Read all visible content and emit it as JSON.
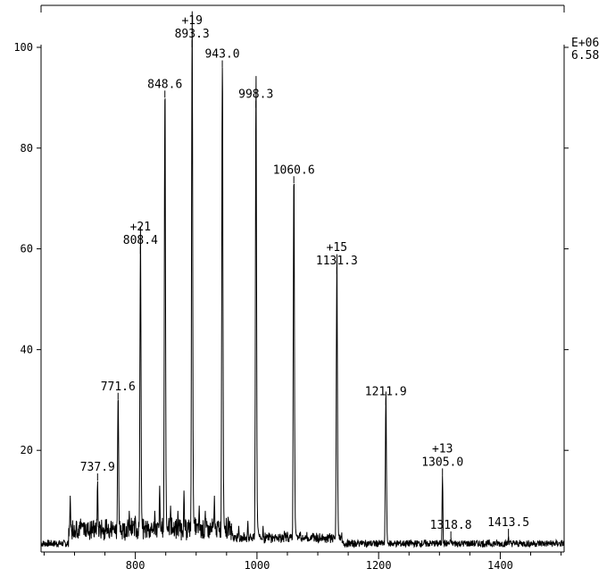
{
  "chart_data": {
    "type": "line",
    "title": "",
    "xlabel": "",
    "ylabel": "",
    "xlim": [
      645,
      1505
    ],
    "ylim": [
      0,
      100
    ],
    "x_ticks": [
      800,
      1000,
      1200,
      1400
    ],
    "y_ticks": [
      20,
      40,
      60,
      80,
      100
    ],
    "scale_label": [
      "E+06",
      "6.58"
    ],
    "grid": false,
    "peaks": [
      {
        "x": 693,
        "y": 11
      },
      {
        "x": 737.9,
        "y": 14,
        "label": "737.9"
      },
      {
        "x": 771.6,
        "y": 30,
        "label": "771.6"
      },
      {
        "x": 808.4,
        "y": 59,
        "label": "808.4",
        "charge": "+21"
      },
      {
        "x": 848.6,
        "y": 90,
        "label": "848.6"
      },
      {
        "x": 893.3,
        "y": 100,
        "label": "893.3",
        "charge": "+19"
      },
      {
        "x": 943.0,
        "y": 96,
        "label": "943.0"
      },
      {
        "x": 998.3,
        "y": 88,
        "label": "998.3"
      },
      {
        "x": 1060.6,
        "y": 73,
        "label": "1060.6"
      },
      {
        "x": 1131.3,
        "y": 55,
        "label": "1131.3",
        "charge": "+15"
      },
      {
        "x": 1211.9,
        "y": 29,
        "label": "1211.9"
      },
      {
        "x": 1305.0,
        "y": 15,
        "label": "1305.0",
        "charge": "+13"
      },
      {
        "x": 1318.8,
        "y": 2.5,
        "label": "1318.8"
      },
      {
        "x": 1413.5,
        "y": 3,
        "label": "1413.5"
      }
    ],
    "minor_peaks": [
      {
        "x": 703,
        "y": 6
      },
      {
        "x": 715,
        "y": 4
      },
      {
        "x": 745,
        "y": 5
      },
      {
        "x": 760,
        "y": 6
      },
      {
        "x": 780,
        "y": 5
      },
      {
        "x": 790,
        "y": 8
      },
      {
        "x": 800,
        "y": 7
      },
      {
        "x": 820,
        "y": 6
      },
      {
        "x": 832,
        "y": 8
      },
      {
        "x": 840,
        "y": 13
      },
      {
        "x": 858,
        "y": 9
      },
      {
        "x": 870,
        "y": 8
      },
      {
        "x": 880,
        "y": 12
      },
      {
        "x": 905,
        "y": 9
      },
      {
        "x": 915,
        "y": 8
      },
      {
        "x": 930,
        "y": 11
      },
      {
        "x": 955,
        "y": 6
      },
      {
        "x": 970,
        "y": 5
      },
      {
        "x": 985,
        "y": 6
      },
      {
        "x": 1010,
        "y": 5
      },
      {
        "x": 1045,
        "y": 4
      },
      {
        "x": 1075,
        "y": 3
      },
      {
        "x": 1120,
        "y": 3
      },
      {
        "x": 1170,
        "y": 2
      }
    ]
  }
}
